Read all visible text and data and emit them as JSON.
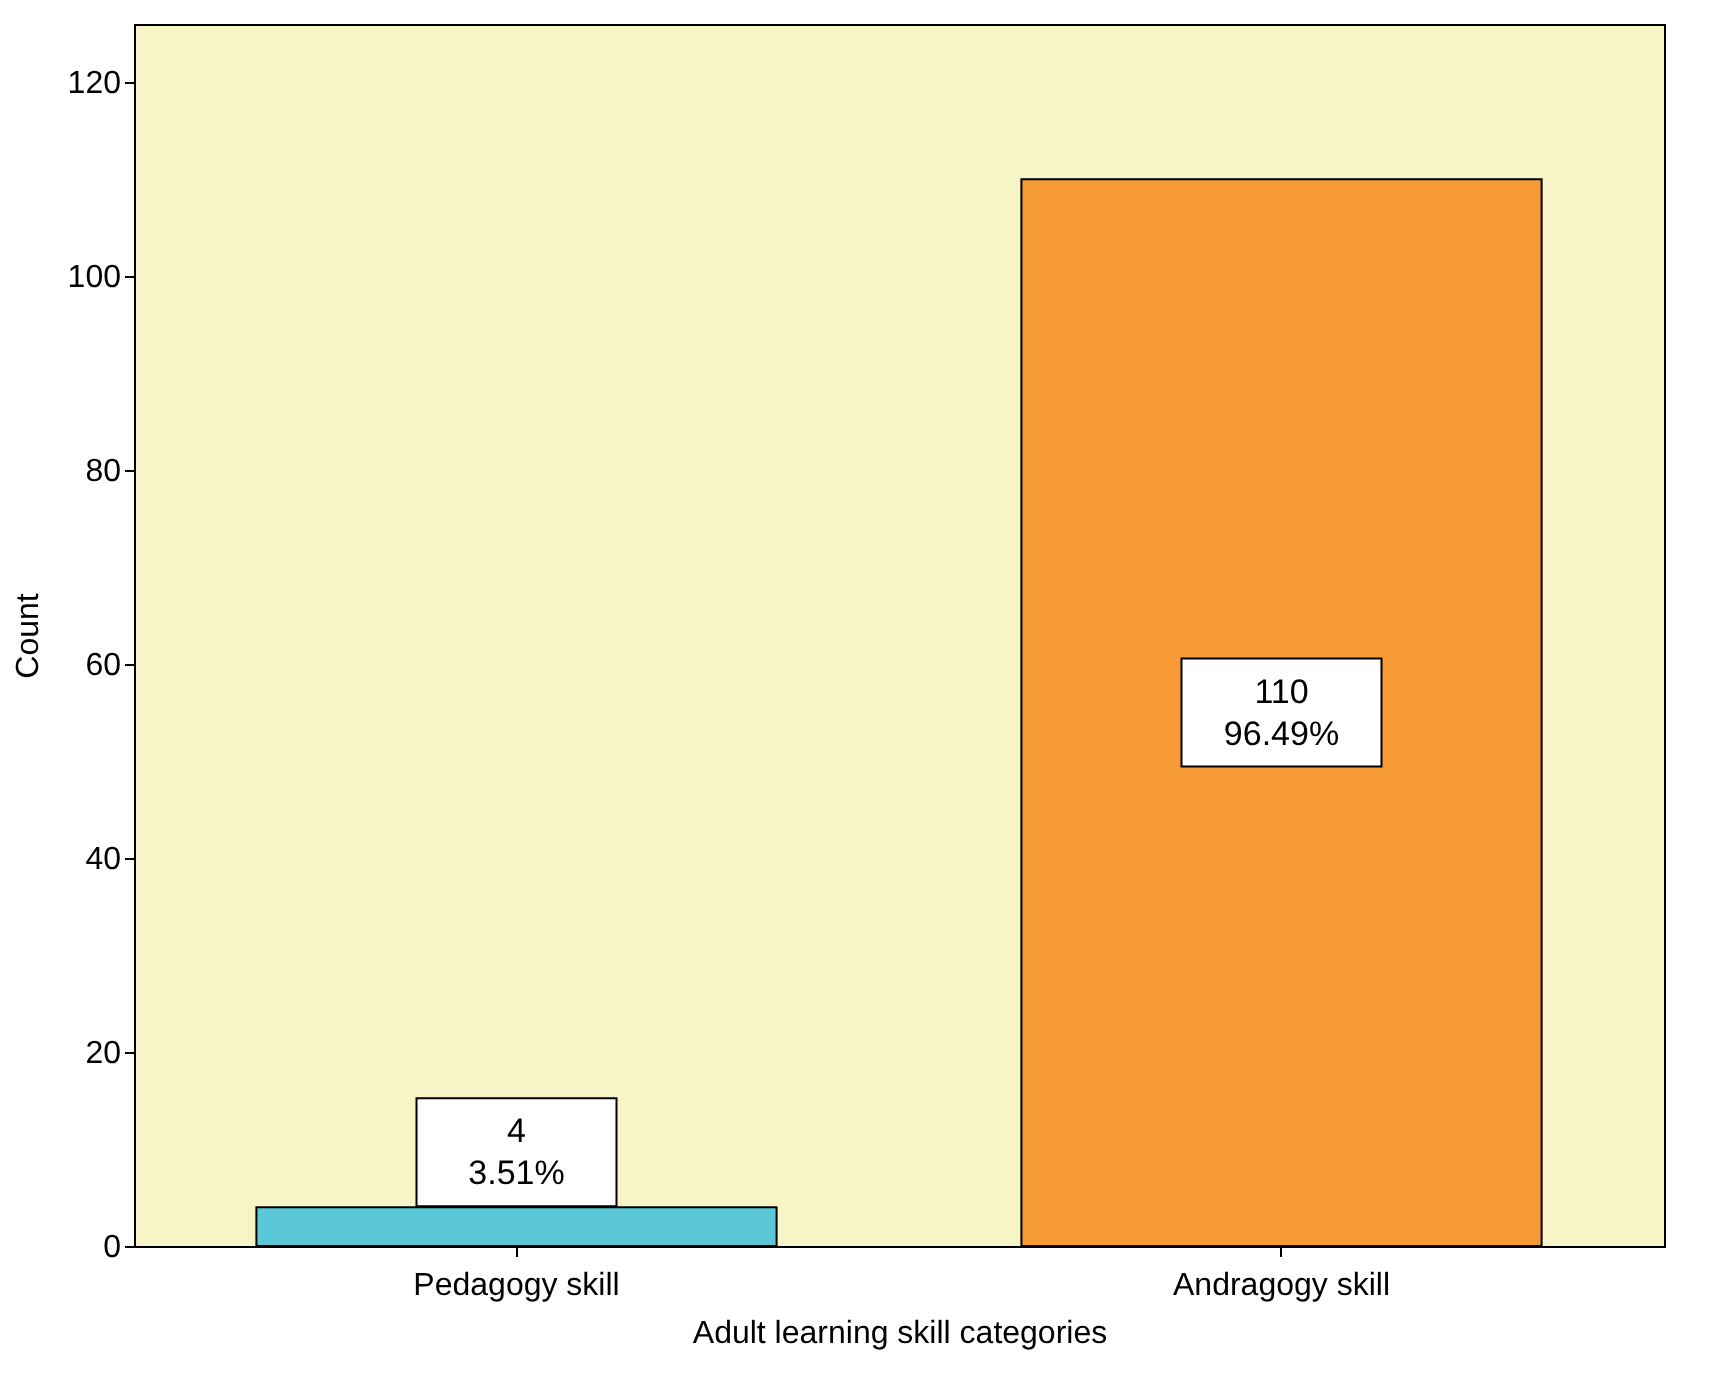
{
  "chart_data": {
    "type": "bar",
    "xlabel": "Adult learning skill categories",
    "ylabel": "Count",
    "categories": [
      "Pedagogy skill",
      "Andragogy skill"
    ],
    "values": [
      4,
      110
    ],
    "colors": [
      "#5bc8d8",
      "#f59a35"
    ],
    "value_labels": [
      "4\n3.51%",
      "110\n96.49%"
    ],
    "ylim": [
      0,
      126
    ],
    "yticks": [
      0,
      20,
      40,
      60,
      80,
      100,
      120
    ],
    "grid": false
  }
}
